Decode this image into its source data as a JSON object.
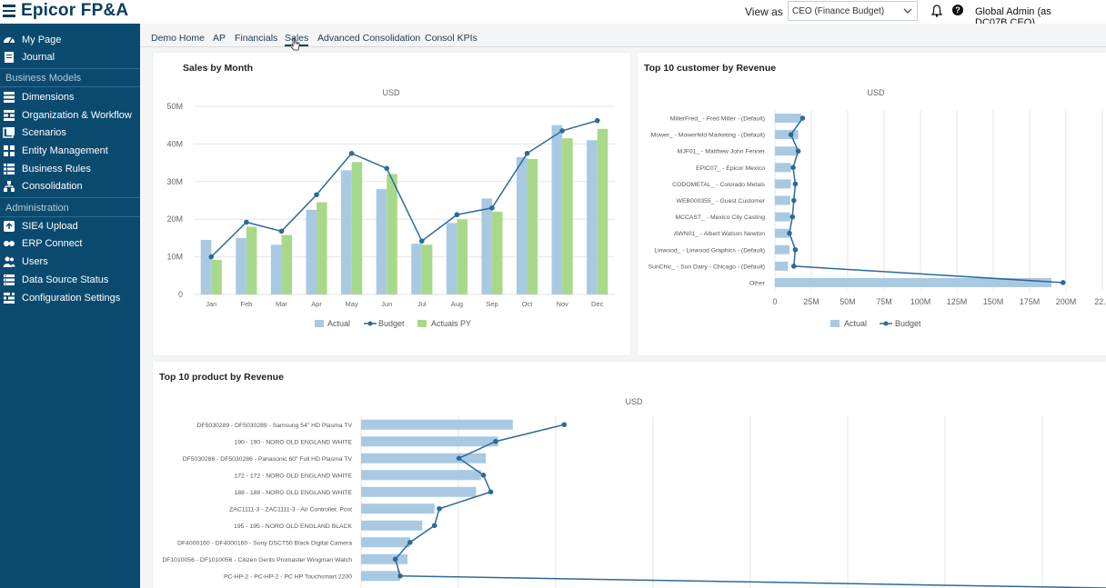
{
  "header": {
    "brand": "Epicor FP&A",
    "view_as_label": "View as",
    "view_as_value": "CEO (Finance Budget)",
    "user_label": "Global Admin (as DC07B.CEO)"
  },
  "sidebar": {
    "items": [
      {
        "label": "My Page",
        "icon": "dashboard-icon"
      },
      {
        "label": "Journal",
        "icon": "journal-icon"
      }
    ],
    "business_models_label": "Business Models",
    "business_models": [
      {
        "label": "Dimensions",
        "icon": "dimensions-icon"
      },
      {
        "label": "Organization & Workflow",
        "icon": "workflow-icon"
      },
      {
        "label": "Scenarios",
        "icon": "scenarios-icon"
      },
      {
        "label": "Entity Management",
        "icon": "entity-icon"
      },
      {
        "label": "Business Rules",
        "icon": "rules-icon"
      },
      {
        "label": "Consolidation",
        "icon": "consolidation-icon"
      }
    ],
    "administration_label": "Administration",
    "administration": [
      {
        "label": "SIE4 Upload",
        "icon": "upload-icon"
      },
      {
        "label": "ERP Connect",
        "icon": "connect-icon"
      },
      {
        "label": "Users",
        "icon": "users-icon"
      },
      {
        "label": "Data Source Status",
        "icon": "datasource-icon"
      },
      {
        "label": "Configuration Settings",
        "icon": "settings-icon"
      }
    ]
  },
  "tabs": [
    "Demo Home",
    "AP",
    "Financials",
    "Sales",
    "Advanced Consolidation",
    "Consol KPIs"
  ],
  "active_tab": "Sales",
  "colors": {
    "actual": "#a9c9e3",
    "budget": "#2b6a9a",
    "actuals_py": "#a8d98a",
    "sidebar": "#0b4a6f"
  },
  "chart_data": [
    {
      "type": "bar",
      "title": "Sales by Month",
      "subtitle": "USD",
      "categories": [
        "Jan",
        "Feb",
        "Mar",
        "Apr",
        "May",
        "Jun",
        "Jul",
        "Aug",
        "Sep",
        "Oct",
        "Nov",
        "Dec"
      ],
      "y_ticks": [
        "0",
        "10M",
        "20M",
        "30M",
        "40M",
        "50M"
      ],
      "ylim": [
        0,
        50
      ],
      "series": [
        {
          "name": "Actual",
          "kind": "bar",
          "values": [
            14.5,
            15,
            13.2,
            22.5,
            33,
            28,
            13.5,
            19,
            25.5,
            36.5,
            45,
            41
          ]
        },
        {
          "name": "Budget",
          "kind": "line",
          "values": [
            10,
            19.2,
            16.8,
            26.5,
            37.5,
            33.5,
            14.2,
            21.2,
            23,
            37.5,
            43.5,
            46.2
          ]
        },
        {
          "name": "Actuals PY",
          "kind": "bar",
          "values": [
            9.2,
            18,
            15.8,
            24.5,
            35.2,
            32,
            13.2,
            20,
            22,
            36,
            41.5,
            44
          ]
        }
      ],
      "legend": "bottom"
    },
    {
      "type": "bar",
      "orientation": "horizontal",
      "title": "Top 10 customer by Revenue",
      "subtitle": "USD",
      "categories": [
        "MillerFred_ - Fred Miller - (Default)",
        "Mower_ - Mowerfeld Marketing - (Default)",
        "MJF01_ - Matthew John Fenner",
        "EPIC07_ - Epicor Mexico",
        "CODOMETAL_ - Colorado Metals",
        "WEB000355_ - Guest Customer",
        "MCCAST_ - Mexico City Casting",
        "AWN01_ - Albert Watson Newton",
        "Linwood_ - Linwood Graphics - (Default)",
        "SunChic_ - Sun Dairy - Chicago - (Default)",
        "Other"
      ],
      "x_ticks": [
        "0",
        "25M",
        "50M",
        "75M",
        "100M",
        "125M",
        "150M",
        "175M",
        "200M",
        "22..."
      ],
      "xlim": [
        0,
        225
      ],
      "series": [
        {
          "name": "Actual",
          "kind": "bar",
          "values": [
            18,
            16,
            15.5,
            11,
            11,
            10.5,
            10.5,
            10,
            10,
            9,
            190
          ]
        },
        {
          "name": "Budget",
          "kind": "line",
          "values": [
            19,
            11,
            16,
            12.5,
            14,
            13,
            12,
            10,
            14,
            13,
            198
          ]
        }
      ],
      "legend": "bottom"
    },
    {
      "type": "bar",
      "orientation": "horizontal",
      "title": "Top 10 product by Revenue",
      "subtitle": "USD",
      "categories": [
        "DF5030289 - DF5030289 - Samsung 54\" HD Plasma TV",
        "190 - 190 - NORO OLD ENGLAND WHITE",
        "DF5030286 - DF5030286 - Panasonic 60\" Full HD Plasma TV",
        "172 - 172 - NORO OLD ENGLAND WHITE",
        "188 - 188 - NORO OLD ENGLAND WHITE",
        "ZAC1111-3 - ZAC1111-3 - Air Controller, Post",
        "195 - 195 - NORO OLD ENGLAND BLACK",
        "DF4000160 - DF4000160 - Sony DSCT50 Black Digital Camera",
        "DF1010056 - DF1010056 - Citizen Gents Promaster Wingman Watch",
        "PC-HP-2 - PC-HP-2 - PC HP Touchsmart 2200"
      ],
      "series": [
        {
          "name": "Actual",
          "kind": "bar",
          "values": [
            6.2,
            5.6,
            5.1,
            4.9,
            4.7,
            3,
            2.5,
            2,
            1.9,
            1.6
          ]
        },
        {
          "name": "Budget",
          "kind": "line",
          "values": [
            8.3,
            5.5,
            4,
            5,
            5.3,
            3.2,
            3,
            2,
            1.4,
            1.6
          ]
        }
      ]
    }
  ]
}
